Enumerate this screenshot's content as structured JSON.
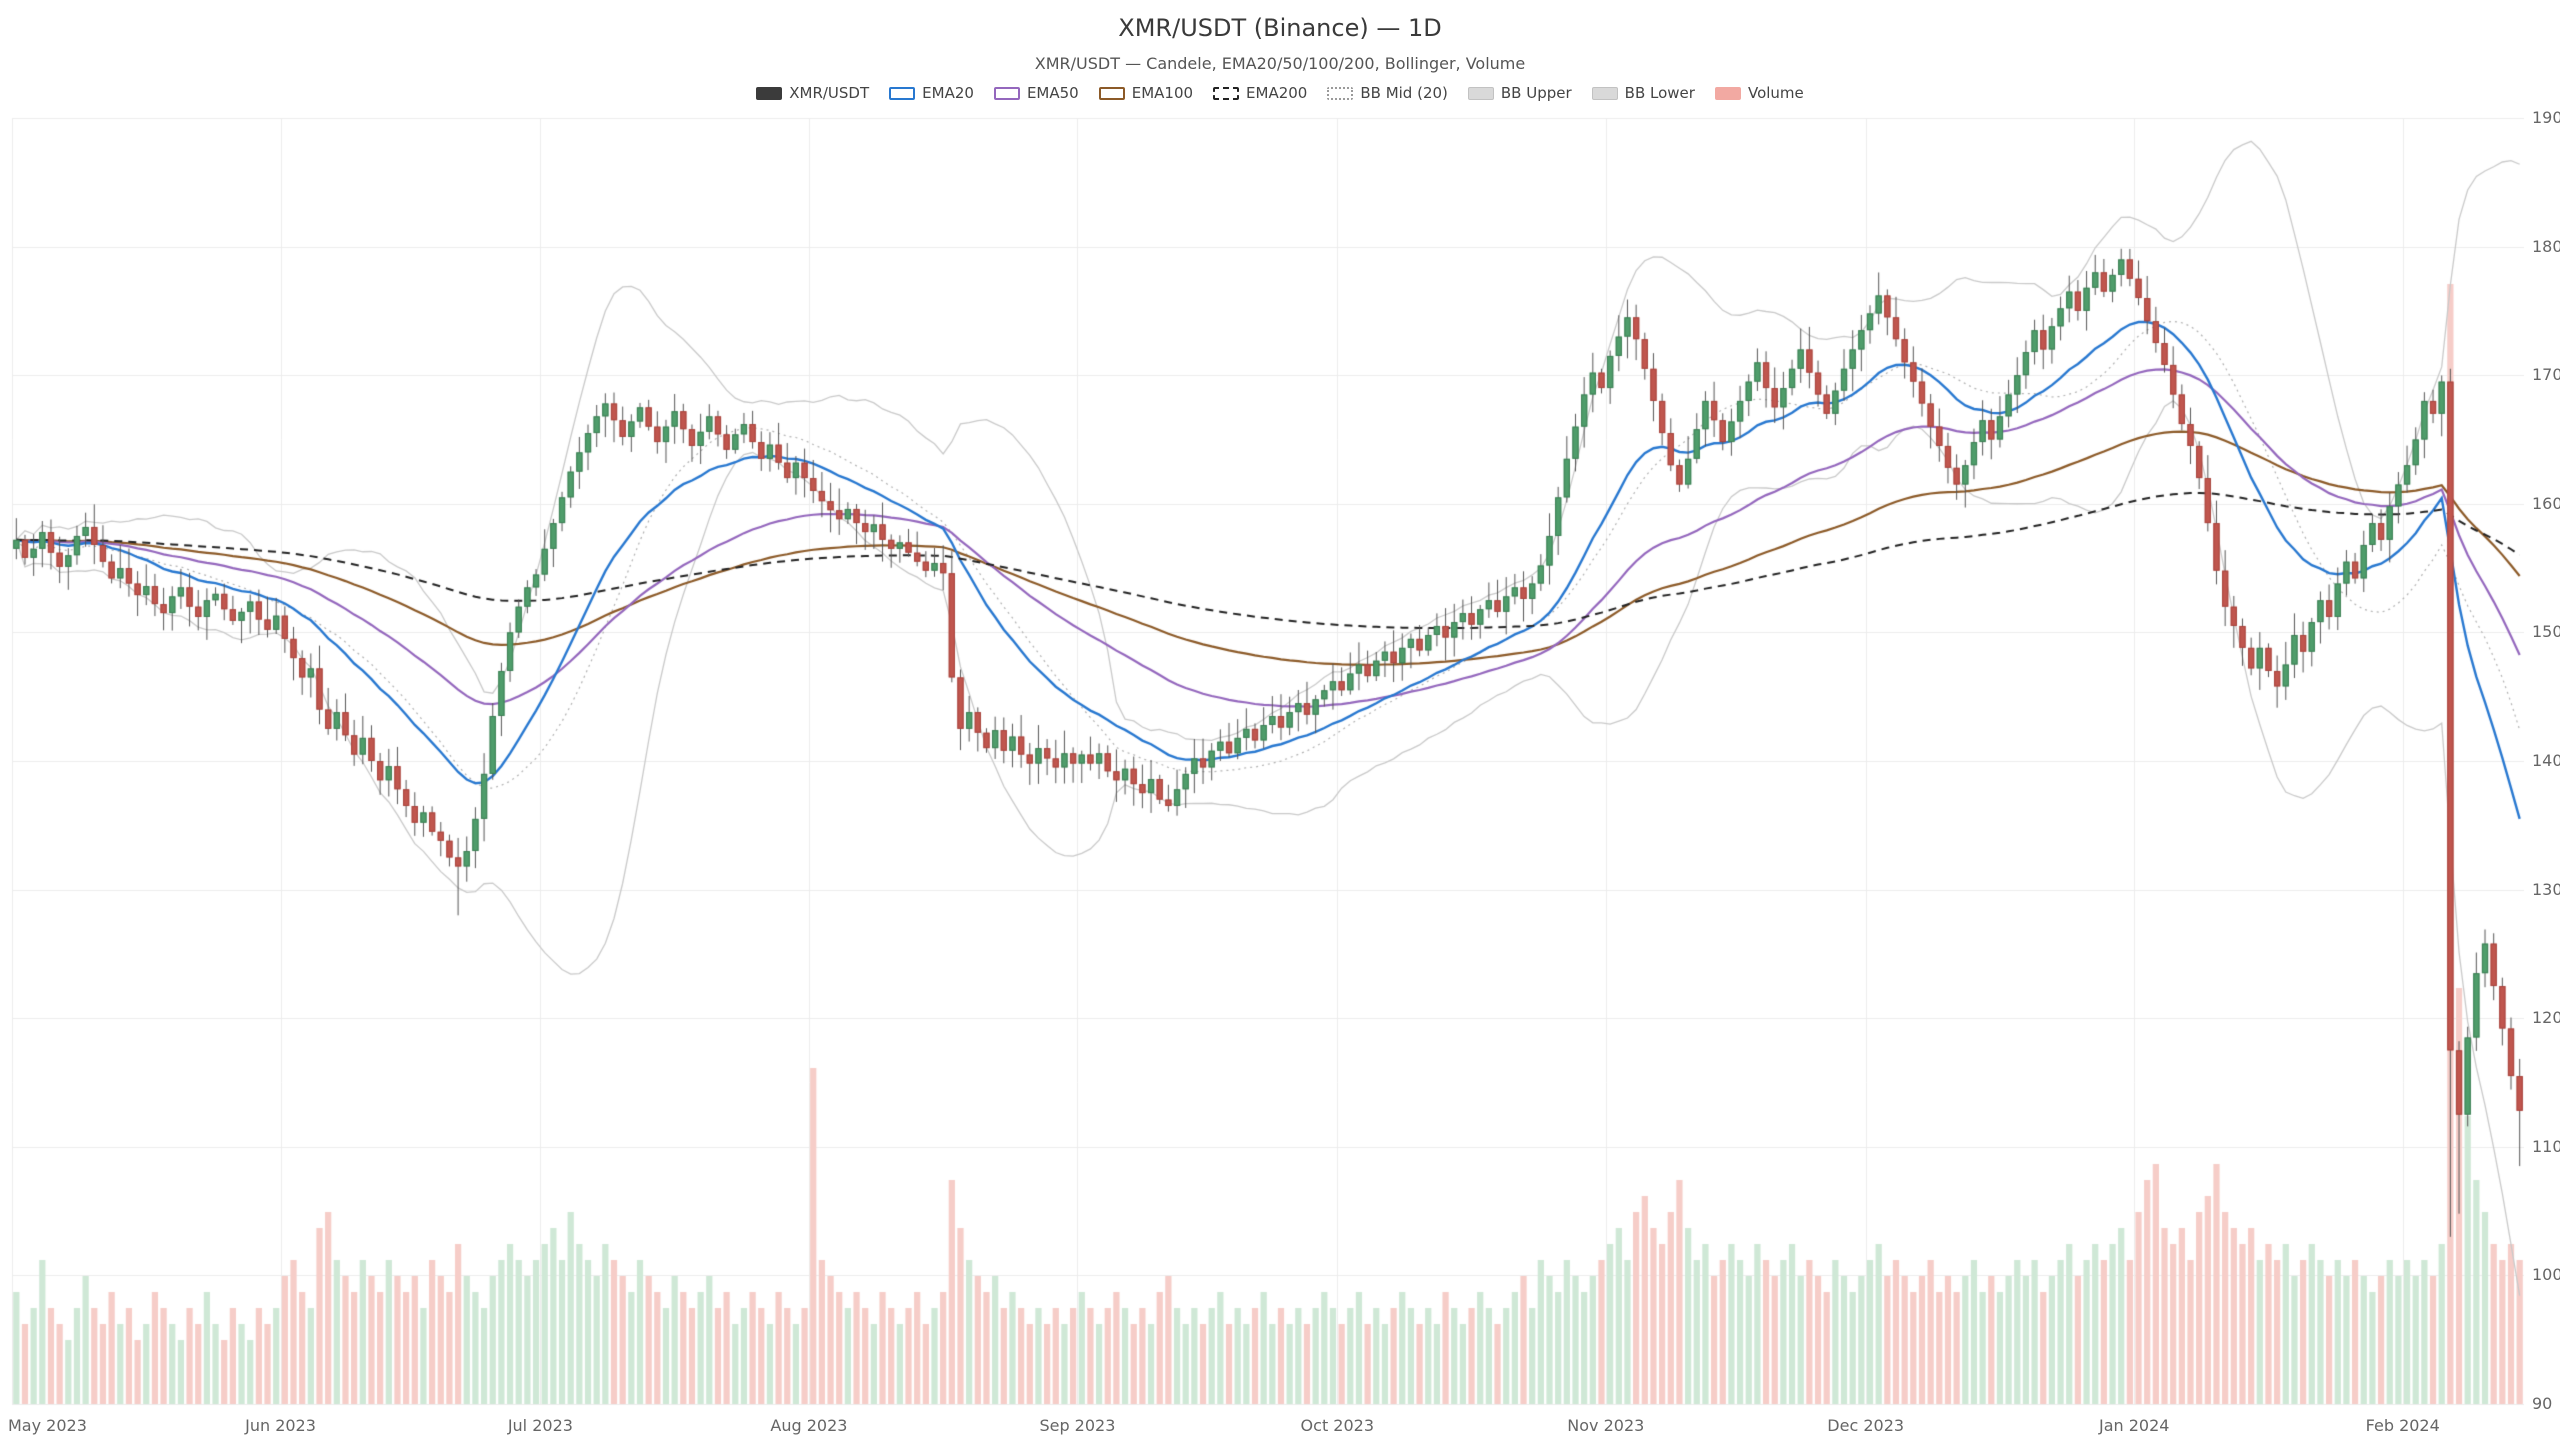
{
  "header": {
    "title": "XMR/USDT (Binance) — 1D",
    "subtitle": "XMR/USDT — Candele, EMA20/50/100/200, Bollinger, Volume"
  },
  "legend": [
    {
      "label": "XMR/USDT",
      "swatch": "solid",
      "color": "#3b3b3b"
    },
    {
      "label": "EMA20",
      "swatch": "outline",
      "color": "#2878d0"
    },
    {
      "label": "EMA50",
      "swatch": "outline",
      "color": "#9467bd"
    },
    {
      "label": "EMA100",
      "swatch": "outline",
      "color": "#8c5a28"
    },
    {
      "label": "EMA200",
      "swatch": "dashed",
      "color": "#222222"
    },
    {
      "label": "BB Mid (20)",
      "swatch": "dotted",
      "color": "#9a9a9a"
    },
    {
      "label": "BB Upper",
      "swatch": "solid-light",
      "color": "#d9d9d9"
    },
    {
      "label": "BB Lower",
      "swatch": "solid-light",
      "color": "#d9d9d9"
    },
    {
      "label": "Volume",
      "swatch": "solid",
      "color": "#f2a9a2"
    }
  ],
  "axes": {
    "y_ticks": [
      90,
      100,
      110,
      120,
      130,
      140,
      150,
      160,
      170,
      180,
      190
    ],
    "x_ticks": [
      "May 2023",
      "Jun 2023",
      "Jul 2023",
      "Aug 2023",
      "Sep 2023",
      "Oct 2023",
      "Nov 2023",
      "Dec 2023",
      "Jan 2024",
      "Feb 2024"
    ]
  },
  "chart_data": {
    "type": "candlestick+volume",
    "title": "XMR/USDT (Binance) — 1D",
    "pair": "XMR/USDT",
    "exchange": "Binance",
    "interval": "1D",
    "indicators": [
      "EMA20",
      "EMA50",
      "EMA100",
      "EMA200",
      "Bollinger(20,2)",
      "Volume"
    ],
    "ylim": [
      90,
      190
    ],
    "grid": true,
    "legend_position": "top-center",
    "first_open": 156.5,
    "months": [
      {
        "label": "May 2023",
        "closes": [
          157.2,
          155.8,
          156.5,
          157.8,
          156.2,
          155.1,
          156.0,
          157.5,
          158.2,
          156.8,
          155.5,
          154.2,
          155.0,
          153.8,
          152.9,
          153.6,
          152.2,
          151.5,
          152.8,
          153.5,
          152.0,
          151.2,
          152.5,
          153.0,
          151.8,
          150.9,
          151.6,
          152.4,
          151.0,
          150.2,
          151.3
        ],
        "volumes": [
          0.7,
          0.5,
          0.6,
          0.9,
          0.6,
          0.5,
          0.4,
          0.6,
          0.8,
          0.6,
          0.5,
          0.7,
          0.5,
          0.6,
          0.4,
          0.5,
          0.7,
          0.6,
          0.5,
          0.4,
          0.6,
          0.5,
          0.7,
          0.5,
          0.4,
          0.6,
          0.5,
          0.4,
          0.6,
          0.5,
          0.6
        ]
      },
      {
        "label": "Jun 2023",
        "closes": [
          149.5,
          148.0,
          146.5,
          147.2,
          144.0,
          142.5,
          143.8,
          142.0,
          140.5,
          141.8,
          140.0,
          138.5,
          139.6,
          137.8,
          136.5,
          135.2,
          136.0,
          134.5,
          133.8,
          132.5,
          131.8,
          133.0,
          135.5,
          139.0,
          143.5,
          147.0,
          150.0,
          152.0,
          153.5,
          154.5
        ],
        "volumes": [
          0.8,
          0.9,
          0.7,
          0.6,
          1.1,
          1.2,
          0.9,
          0.8,
          0.7,
          0.9,
          0.8,
          0.7,
          0.9,
          0.8,
          0.7,
          0.8,
          0.6,
          0.9,
          0.8,
          0.7,
          1.0,
          0.8,
          0.7,
          0.6,
          0.8,
          0.9,
          1.0,
          0.9,
          0.8,
          0.9
        ]
      },
      {
        "label": "Jul 2023",
        "closes": [
          156.5,
          158.5,
          160.5,
          162.5,
          164.0,
          165.5,
          166.8,
          167.8,
          166.5,
          165.2,
          166.4,
          167.5,
          166.0,
          164.8,
          166.0,
          167.2,
          165.8,
          164.5,
          165.6,
          166.8,
          165.4,
          164.2,
          165.4,
          166.2,
          164.8,
          163.5,
          164.6,
          163.2,
          162.0,
          163.2,
          162.0
        ],
        "volumes": [
          1.0,
          1.1,
          0.9,
          1.2,
          1.0,
          0.9,
          0.8,
          1.0,
          0.9,
          0.8,
          0.7,
          0.9,
          0.8,
          0.7,
          0.6,
          0.8,
          0.7,
          0.6,
          0.7,
          0.8,
          0.6,
          0.7,
          0.5,
          0.6,
          0.7,
          0.6,
          0.5,
          0.7,
          0.6,
          0.5,
          0.6
        ]
      },
      {
        "label": "Aug 2023",
        "closes": [
          161.0,
          160.2,
          159.5,
          158.8,
          159.6,
          158.5,
          157.8,
          158.4,
          157.2,
          156.5,
          157.0,
          156.2,
          155.5,
          154.8,
          155.4,
          154.6,
          146.5,
          142.5,
          143.8,
          142.2,
          141.0,
          142.4,
          140.8,
          141.9,
          140.5,
          139.8,
          141.0,
          140.2,
          139.5,
          140.6,
          139.8
        ],
        "volumes": [
          2.1,
          0.9,
          0.8,
          0.7,
          0.6,
          0.7,
          0.6,
          0.5,
          0.7,
          0.6,
          0.5,
          0.6,
          0.7,
          0.5,
          0.6,
          0.7,
          1.4,
          1.1,
          0.9,
          0.8,
          0.7,
          0.8,
          0.6,
          0.7,
          0.6,
          0.5,
          0.6,
          0.5,
          0.6,
          0.5,
          0.6
        ]
      },
      {
        "label": "Sep 2023",
        "closes": [
          140.5,
          139.8,
          140.6,
          139.2,
          138.5,
          139.4,
          138.2,
          137.5,
          138.6,
          137.0,
          136.5,
          137.8,
          139.0,
          140.2,
          139.5,
          140.8,
          141.5,
          140.6,
          141.8,
          142.5,
          141.6,
          142.8,
          143.5,
          142.6,
          143.8,
          144.5,
          143.6,
          144.8,
          145.5,
          146.2
        ],
        "volumes": [
          0.7,
          0.6,
          0.5,
          0.6,
          0.7,
          0.6,
          0.5,
          0.6,
          0.5,
          0.7,
          0.8,
          0.6,
          0.5,
          0.6,
          0.5,
          0.6,
          0.7,
          0.5,
          0.6,
          0.5,
          0.6,
          0.7,
          0.5,
          0.6,
          0.5,
          0.6,
          0.5,
          0.6,
          0.7,
          0.6
        ]
      },
      {
        "label": "Oct 2023",
        "closes": [
          145.5,
          146.8,
          147.5,
          146.6,
          147.8,
          148.5,
          147.6,
          148.8,
          149.5,
          148.6,
          149.8,
          150.5,
          149.6,
          150.8,
          151.5,
          150.6,
          151.8,
          152.5,
          151.6,
          152.8,
          153.5,
          152.6,
          153.8,
          155.2,
          157.5,
          160.5,
          163.5,
          166.0,
          168.5,
          170.2,
          169.0
        ],
        "volumes": [
          0.5,
          0.6,
          0.7,
          0.5,
          0.6,
          0.5,
          0.6,
          0.7,
          0.6,
          0.5,
          0.6,
          0.5,
          0.7,
          0.6,
          0.5,
          0.6,
          0.7,
          0.6,
          0.5,
          0.6,
          0.7,
          0.8,
          0.6,
          0.9,
          0.8,
          0.7,
          0.9,
          0.8,
          0.7,
          0.8,
          0.9
        ]
      },
      {
        "label": "Nov 2023",
        "closes": [
          171.5,
          173.0,
          174.5,
          172.8,
          170.5,
          168.0,
          165.5,
          163.0,
          161.5,
          163.5,
          165.8,
          168.0,
          166.5,
          164.8,
          166.4,
          168.0,
          169.5,
          171.0,
          169.0,
          167.5,
          169.0,
          170.5,
          172.0,
          170.2,
          168.5,
          167.0,
          168.8,
          170.5,
          172.0,
          173.5
        ],
        "volumes": [
          1.0,
          1.1,
          0.9,
          1.2,
          1.3,
          1.1,
          1.0,
          1.2,
          1.4,
          1.1,
          0.9,
          1.0,
          0.8,
          0.9,
          1.0,
          0.9,
          0.8,
          1.0,
          0.9,
          0.8,
          0.9,
          1.0,
          0.8,
          0.9,
          0.8,
          0.7,
          0.9,
          0.8,
          0.7,
          0.8
        ]
      },
      {
        "label": "Dec 2023",
        "closes": [
          174.8,
          176.2,
          174.5,
          172.8,
          171.0,
          169.5,
          167.8,
          166.0,
          164.5,
          162.8,
          161.5,
          163.0,
          164.8,
          166.5,
          165.0,
          166.8,
          168.5,
          170.0,
          171.8,
          173.5,
          172.0,
          173.8,
          175.2,
          176.5,
          175.0,
          176.8,
          178.0,
          176.5,
          177.8,
          179.0,
          177.5
        ],
        "volumes": [
          0.9,
          1.0,
          0.8,
          0.9,
          0.8,
          0.7,
          0.8,
          0.9,
          0.7,
          0.8,
          0.7,
          0.8,
          0.9,
          0.7,
          0.8,
          0.7,
          0.8,
          0.9,
          0.8,
          0.9,
          0.7,
          0.8,
          0.9,
          1.0,
          0.8,
          0.9,
          1.0,
          0.9,
          1.0,
          1.1,
          0.9
        ]
      },
      {
        "label": "Jan 2024",
        "closes": [
          176.0,
          174.2,
          172.5,
          170.8,
          168.5,
          166.2,
          164.5,
          162.0,
          158.5,
          154.8,
          152.0,
          150.5,
          148.8,
          147.2,
          148.8,
          147.0,
          145.8,
          147.5,
          149.8,
          148.5,
          150.8,
          152.5,
          151.2,
          153.8,
          155.5,
          154.2,
          156.8,
          158.5,
          157.2,
          159.8,
          161.5
        ],
        "volumes": [
          1.2,
          1.4,
          1.5,
          1.1,
          1.0,
          1.1,
          0.9,
          1.2,
          1.3,
          1.5,
          1.2,
          1.1,
          1.0,
          1.1,
          0.9,
          1.0,
          0.9,
          1.0,
          0.8,
          0.9,
          1.0,
          0.9,
          0.8,
          0.9,
          0.8,
          0.9,
          0.8,
          0.7,
          0.8,
          0.9,
          0.8
        ]
      },
      {
        "label": "Feb 2024",
        "closes": [
          163.0,
          165.0,
          168.0,
          167.0,
          169.5,
          117.5,
          112.5,
          118.5,
          123.5,
          125.8,
          122.5,
          119.2,
          115.5,
          112.8
        ],
        "volumes": [
          0.9,
          0.8,
          0.9,
          0.8,
          1.0,
          7.0,
          2.6,
          1.8,
          1.4,
          1.2,
          1.0,
          0.9,
          1.0,
          0.9
        ]
      }
    ],
    "overrides": {
      "51": {
        "low": 128.0
      },
      "281": {
        "low": 103.0,
        "high": 170.5
      },
      "282": {
        "low": 104.8
      },
      "289": {
        "low": 108.5
      }
    },
    "wick_style": {
      "min": 0.3,
      "max": 1.8
    },
    "colors": {
      "up_body": "#4f9d6b",
      "up_border": "#3c7f54",
      "down_body": "#c0564e",
      "down_border": "#a8443d",
      "wick": "#555555",
      "vol_up": "#cfe8d6",
      "vol_down": "#f6cdc8",
      "ema20": "#2878d0",
      "ema50": "#9467bd",
      "ema100": "#8c5a28",
      "ema200": "#222222",
      "bb_band": "#c9c9c9",
      "bb_mid": "#b0b0b0",
      "grid": "#ececec",
      "tick_text": "#666666"
    }
  }
}
